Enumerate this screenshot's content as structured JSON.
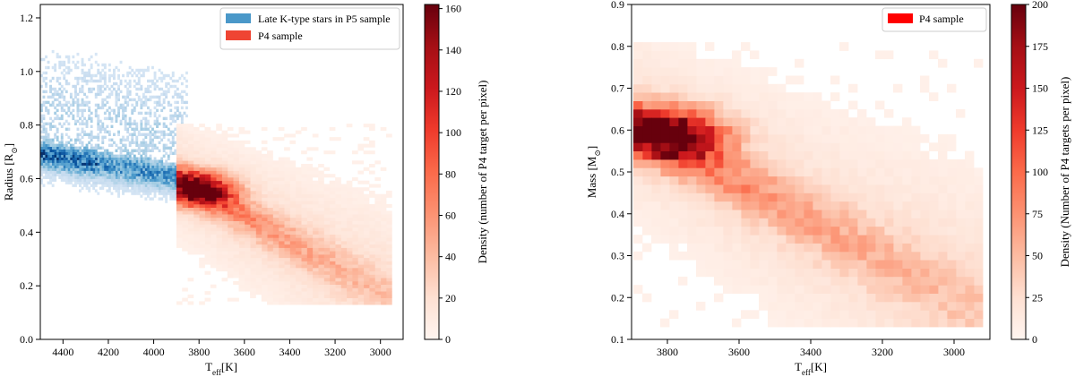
{
  "chart_data": [
    {
      "type": "heatmap",
      "title": "",
      "xlabel": {
        "main": "T",
        "sub": "eff",
        "unit": "[K]"
      },
      "ylabel": {
        "main": "Radius [R",
        "sym": "⊙",
        "close": "]"
      },
      "xlim": [
        4500,
        2900
      ],
      "ylim": [
        0,
        1.25
      ],
      "x_inverted": true,
      "xticks": [
        4400,
        4200,
        4000,
        3800,
        3600,
        3400,
        3200,
        3000
      ],
      "yticks": [
        "0.0",
        "0.2",
        "0.4",
        "0.6",
        "0.8",
        "1.0",
        "1.2"
      ],
      "legend": {
        "placement": "top-right",
        "entries": [
          {
            "label": "Late  K-type stars in P5 sample",
            "color": "#4a98c9"
          },
          {
            "label": "P4 sample",
            "color": "#ef4533"
          }
        ]
      },
      "colorbar": {
        "label": "Density (number of P4 target per pixel)",
        "min": 0,
        "max": 162,
        "ticks": [
          "0",
          "20",
          "40",
          "60",
          "80",
          "100",
          "120",
          "140",
          "160"
        ],
        "colormap": "Reds"
      },
      "series": [
        {
          "name": "Late  K-type stars in P5 sample",
          "colormap": "Blues",
          "x_range": [
            3850,
            4500
          ],
          "y_range": [
            0.4,
            1.2
          ],
          "ridge": {
            "x0": 3850,
            "y0": 0.6,
            "x1": 4500,
            "y1": 0.69
          },
          "core_width": 0.045,
          "peak_region_x": [
            4250,
            4500
          ]
        },
        {
          "name": "P4 sample",
          "colormap": "Reds",
          "x_range": [
            2950,
            3880
          ],
          "y_range": [
            0.13,
            0.8
          ],
          "peak": {
            "x": 3800,
            "y": 0.56,
            "density": 160
          },
          "ridge": {
            "x0": 3850,
            "y0": 0.58,
            "x1": 3000,
            "y1": 0.18
          }
        }
      ]
    },
    {
      "type": "heatmap",
      "title": "",
      "xlabel": {
        "main": "T",
        "sub": "eff",
        "unit": "[K]"
      },
      "ylabel": {
        "main": "Mass [M",
        "sym": "⊙",
        "close": "]"
      },
      "xlim": [
        3900,
        2900
      ],
      "ylim": [
        0.1,
        0.9
      ],
      "x_inverted": true,
      "xticks": [
        3800,
        3600,
        3400,
        3200,
        3000
      ],
      "yticks": [
        "0.1",
        "0.2",
        "0.3",
        "0.4",
        "0.5",
        "0.6",
        "0.7",
        "0.8",
        "0.9"
      ],
      "legend": {
        "placement": "top-right",
        "entries": [
          {
            "label": "P4 sample",
            "color": "#ff0000"
          }
        ]
      },
      "colorbar": {
        "label": "Density (Number of P4 targets per pixel)",
        "min": 0,
        "max": 200,
        "ticks": [
          "0",
          "25",
          "50",
          "75",
          "100",
          "125",
          "150",
          "175",
          "200"
        ],
        "colormap": "Reds"
      },
      "series": [
        {
          "name": "P4 sample",
          "colormap": "Reds",
          "x_range": [
            2920,
            3880
          ],
          "y_range": [
            0.13,
            0.8
          ],
          "peak": {
            "x": 3790,
            "y": 0.59,
            "density": 200
          },
          "ridge": {
            "x0": 3860,
            "y0": 0.6,
            "x1": 3000,
            "y1": 0.2
          }
        }
      ]
    }
  ]
}
